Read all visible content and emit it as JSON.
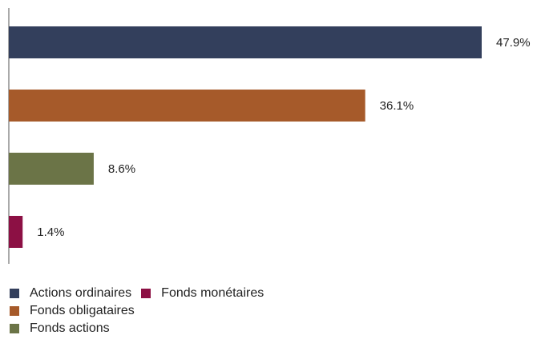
{
  "chart_data": {
    "type": "bar",
    "orientation": "horizontal",
    "categories": [
      "Actions ordinaires",
      "Fonds obligataires",
      "Fonds actions",
      "Fonds monétaires"
    ],
    "values": [
      47.9,
      36.1,
      8.6,
      1.4
    ],
    "value_labels": [
      "47.9%",
      "36.1%",
      "8.6%",
      "1.4%"
    ],
    "colors": [
      "#333f5c",
      "#a65a2a",
      "#6b7447",
      "#8c1044"
    ],
    "xlim": [
      0,
      50
    ],
    "grid": false,
    "legend": "bottom-left",
    "legend_rows": [
      [
        0,
        3
      ],
      [
        1
      ],
      [
        2
      ]
    ]
  }
}
